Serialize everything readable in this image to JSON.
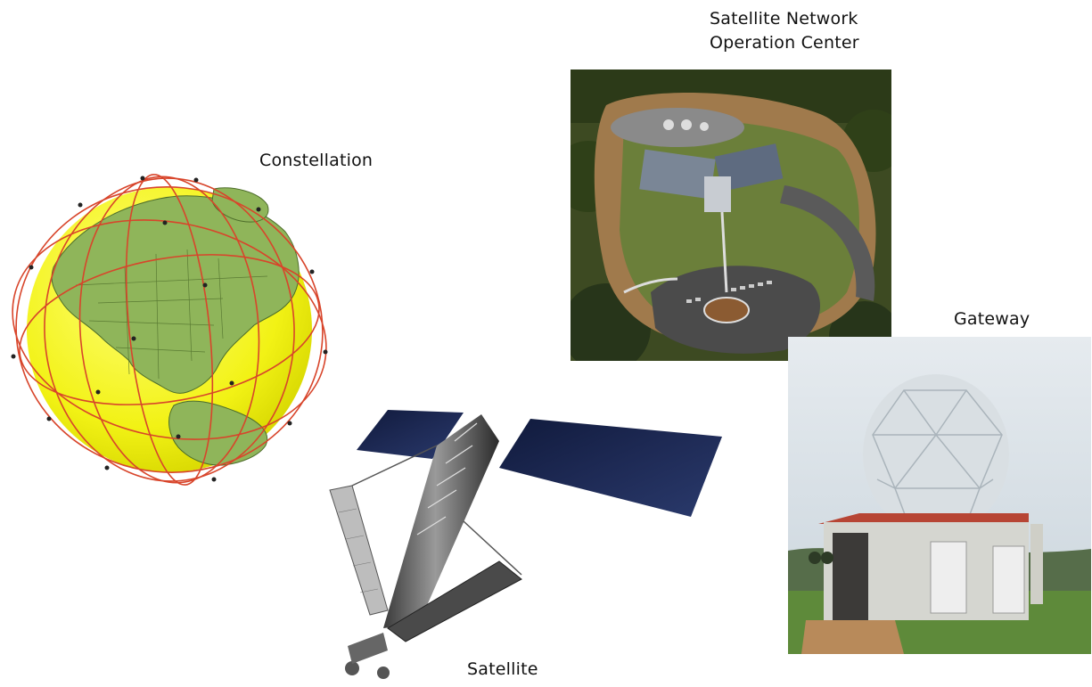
{
  "labels": {
    "noc_line1": "Satellite Network",
    "noc_line2": "Operation Center",
    "constellation": "Constellation",
    "gateway": "Gateway",
    "satellite": "Satellite"
  },
  "colors": {
    "globe_fill": "#f2f215",
    "land": "#8fb55a",
    "orbit_line": "#d8452b",
    "solar_panel": "#1e2a55"
  },
  "icons": {
    "constellation": "globe-with-orbits-illustration",
    "noc": "aerial-photo-building",
    "gateway": "radome-antenna-photo",
    "satellite": "satellite-illustration"
  }
}
